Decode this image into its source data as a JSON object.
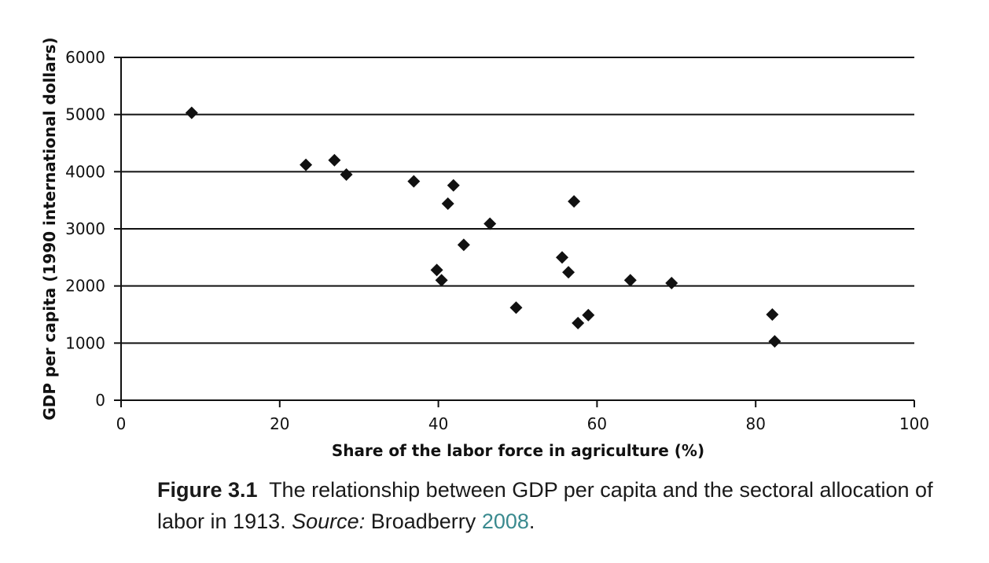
{
  "chart_data": {
    "type": "scatter",
    "xlabel": "Share of the labor force in agriculture (%)",
    "ylabel": "GDP per capita (1990 international dollars)",
    "xlim": [
      0,
      100
    ],
    "ylim": [
      0,
      6000
    ],
    "xticks": [
      0,
      20,
      40,
      60,
      80,
      100
    ],
    "yticks": [
      0,
      1000,
      2000,
      3000,
      4000,
      5000,
      6000
    ],
    "grid": "horizontal",
    "marker": "diamond",
    "marker_color": "#111111",
    "points": [
      {
        "x": 8.9,
        "y": 5030
      },
      {
        "x": 23.3,
        "y": 4120
      },
      {
        "x": 26.9,
        "y": 4200
      },
      {
        "x": 28.4,
        "y": 3950
      },
      {
        "x": 36.9,
        "y": 3830
      },
      {
        "x": 39.8,
        "y": 2280
      },
      {
        "x": 40.4,
        "y": 2100
      },
      {
        "x": 41.2,
        "y": 3440
      },
      {
        "x": 41.9,
        "y": 3760
      },
      {
        "x": 43.2,
        "y": 2720
      },
      {
        "x": 46.5,
        "y": 3090
      },
      {
        "x": 49.8,
        "y": 1620
      },
      {
        "x": 55.6,
        "y": 2500
      },
      {
        "x": 56.4,
        "y": 2240
      },
      {
        "x": 57.1,
        "y": 3480
      },
      {
        "x": 57.6,
        "y": 1350
      },
      {
        "x": 58.9,
        "y": 1490
      },
      {
        "x": 64.2,
        "y": 2100
      },
      {
        "x": 69.4,
        "y": 2050
      },
      {
        "x": 82.1,
        "y": 1500
      },
      {
        "x": 82.4,
        "y": 1030
      }
    ]
  },
  "caption": {
    "label": "Figure 3.1",
    "text": "The relationship between GDP per capita and the sectoral allocation of labor in 1913.",
    "source_label": "Source:",
    "source_author": "Broadberry",
    "source_year": "2008",
    "end": ".",
    "link_color": "#3a8a8f"
  }
}
